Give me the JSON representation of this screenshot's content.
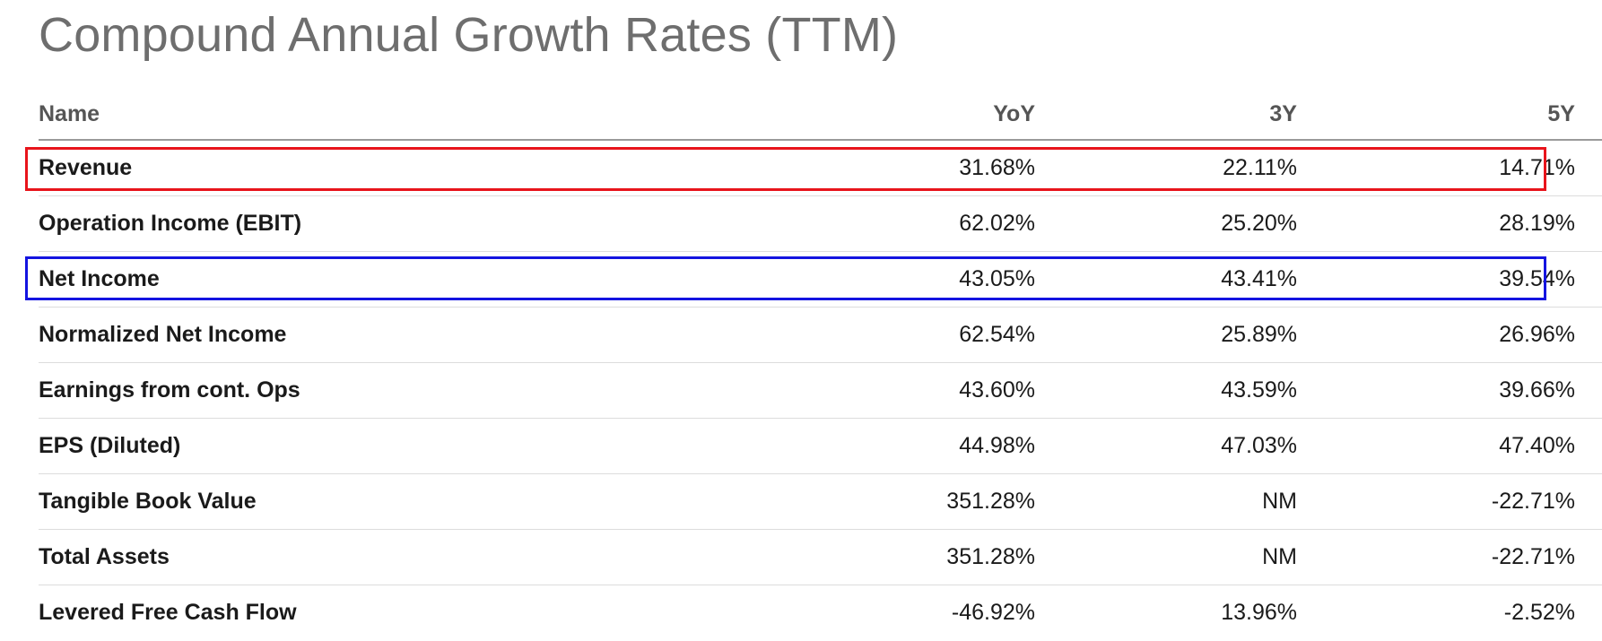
{
  "title": "Compound Annual Growth Rates (TTM)",
  "columns": {
    "name": "Name",
    "yoy": "YoY",
    "y3": "3Y",
    "y5": "5Y"
  },
  "rows": [
    {
      "name": "Revenue",
      "yoy": "31.68%",
      "y3": "22.11%",
      "y5": "14.71%"
    },
    {
      "name": "Operation Income (EBIT)",
      "yoy": "62.02%",
      "y3": "25.20%",
      "y5": "28.19%"
    },
    {
      "name": "Net Income",
      "yoy": "43.05%",
      "y3": "43.41%",
      "y5": "39.54%"
    },
    {
      "name": "Normalized Net Income",
      "yoy": "62.54%",
      "y3": "25.89%",
      "y5": "26.96%"
    },
    {
      "name": "Earnings from cont. Ops",
      "yoy": "43.60%",
      "y3": "43.59%",
      "y5": "39.66%"
    },
    {
      "name": "EPS (Diluted)",
      "yoy": "44.98%",
      "y3": "47.03%",
      "y5": "47.40%"
    },
    {
      "name": "Tangible Book Value",
      "yoy": "351.28%",
      "y3": "NM",
      "y5": "-22.71%"
    },
    {
      "name": "Total Assets",
      "yoy": "351.28%",
      "y3": "NM",
      "y5": "-22.71%"
    },
    {
      "name": "Levered Free Cash Flow",
      "yoy": "-46.92%",
      "y3": "13.96%",
      "y5": "-2.52%"
    }
  ],
  "highlights": [
    {
      "row_index": 0,
      "color": "#e8141b"
    },
    {
      "row_index": 2,
      "color": "#1414e0"
    }
  ]
}
